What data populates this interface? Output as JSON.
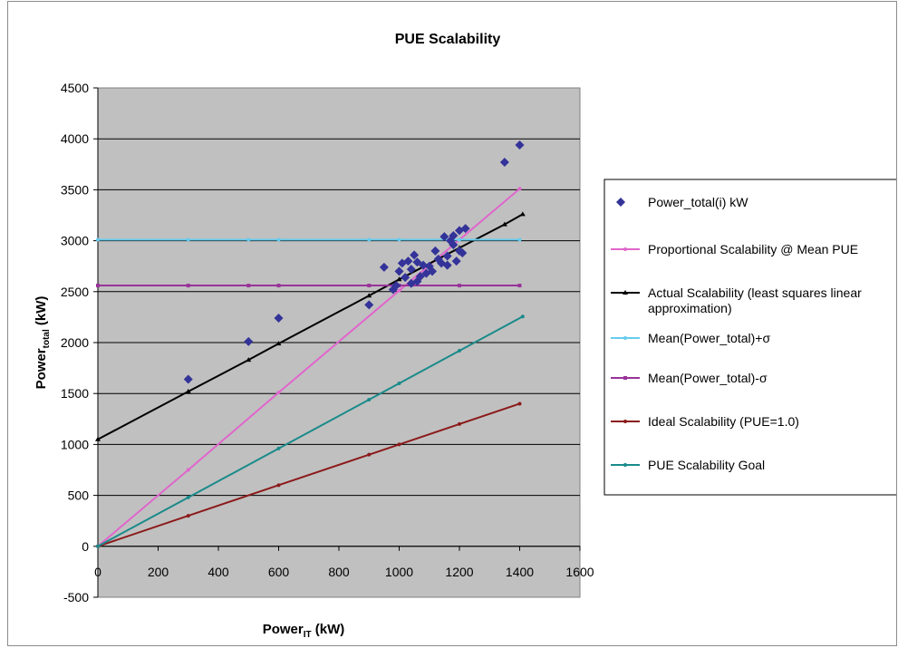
{
  "chart_data": {
    "type": "scatter",
    "title": "PUE Scalability",
    "xlabel": {
      "main": "Power",
      "sub": "IT",
      "unit": " (kW)"
    },
    "ylabel": {
      "main": "Power",
      "sub": "total",
      "unit": " (kW)"
    },
    "xlim": [
      0,
      1600
    ],
    "ylim": [
      -500,
      4500
    ],
    "x_ticks": [
      0,
      200,
      400,
      600,
      800,
      1000,
      1200,
      1400,
      1600
    ],
    "y_ticks": [
      -500,
      0,
      500,
      1000,
      1500,
      2000,
      2500,
      3000,
      3500,
      4000,
      4500
    ],
    "grid": "horizontal",
    "plot_background": "#c0c0c0",
    "legend_position": "right",
    "series": [
      {
        "name": "Power_total(i) kW",
        "kind": "markers",
        "marker": "diamond",
        "color": "#333399",
        "points": [
          [
            300,
            1640
          ],
          [
            500,
            2010
          ],
          [
            600,
            2240
          ],
          [
            900,
            2370
          ],
          [
            950,
            2740
          ],
          [
            980,
            2520
          ],
          [
            990,
            2560
          ],
          [
            1000,
            2700
          ],
          [
            1010,
            2780
          ],
          [
            1020,
            2640
          ],
          [
            1030,
            2800
          ],
          [
            1040,
            2720
          ],
          [
            1050,
            2860
          ],
          [
            1060,
            2600
          ],
          [
            1070,
            2650
          ],
          [
            1080,
            2760
          ],
          [
            1090,
            2680
          ],
          [
            1100,
            2750
          ],
          [
            1110,
            2700
          ],
          [
            1120,
            2900
          ],
          [
            1130,
            2820
          ],
          [
            1140,
            2780
          ],
          [
            1150,
            3040
          ],
          [
            1160,
            2850
          ],
          [
            1170,
            3000
          ],
          [
            1180,
            2960
          ],
          [
            1190,
            2800
          ],
          [
            1200,
            3100
          ],
          [
            1210,
            2880
          ],
          [
            1220,
            3120
          ],
          [
            1160,
            2760
          ],
          [
            1200,
            2900
          ],
          [
            1040,
            2580
          ],
          [
            1060,
            2790
          ],
          [
            1180,
            3050
          ],
          [
            1350,
            3770
          ],
          [
            1400,
            3940
          ]
        ]
      },
      {
        "name": "Proportional Scalability @ Mean PUE",
        "kind": "line",
        "marker": "dot",
        "color": "#e066cc",
        "points": [
          [
            0,
            0
          ],
          [
            300,
            750
          ],
          [
            600,
            1510
          ],
          [
            1000,
            2510
          ],
          [
            1200,
            3010
          ],
          [
            1400,
            3510
          ]
        ]
      },
      {
        "name": "Actual Scalability (least squares linear approximation)",
        "kind": "line",
        "marker": "triangle",
        "color": "#000000",
        "points": [
          [
            0,
            1050
          ],
          [
            300,
            1520
          ],
          [
            500,
            1830
          ],
          [
            600,
            1990
          ],
          [
            900,
            2460
          ],
          [
            1000,
            2620
          ],
          [
            1200,
            2930
          ],
          [
            1350,
            3160
          ],
          [
            1410,
            3260
          ]
        ]
      },
      {
        "name": "Mean(Power_total)+σ",
        "kind": "line",
        "marker": "dot",
        "color": "#66ccee",
        "points": [
          [
            0,
            3010
          ],
          [
            300,
            3010
          ],
          [
            500,
            3010
          ],
          [
            600,
            3010
          ],
          [
            900,
            3010
          ],
          [
            1000,
            3010
          ],
          [
            1200,
            3010
          ],
          [
            1400,
            3010
          ]
        ]
      },
      {
        "name": "Mean(Power_total)-σ",
        "kind": "line",
        "marker": "square",
        "color": "#993399",
        "points": [
          [
            0,
            2560
          ],
          [
            300,
            2560
          ],
          [
            500,
            2560
          ],
          [
            600,
            2560
          ],
          [
            900,
            2560
          ],
          [
            1000,
            2560
          ],
          [
            1200,
            2560
          ],
          [
            1400,
            2560
          ]
        ]
      },
      {
        "name": "Ideal Scalability (PUE=1.0)",
        "kind": "line",
        "marker": "dot",
        "color": "#8b1a1a",
        "points": [
          [
            0,
            0
          ],
          [
            300,
            300
          ],
          [
            600,
            600
          ],
          [
            900,
            900
          ],
          [
            1000,
            1000
          ],
          [
            1200,
            1200
          ],
          [
            1400,
            1400
          ]
        ]
      },
      {
        "name": "PUE Scalability Goal",
        "kind": "line",
        "marker": "dot",
        "color": "#1a8a8a",
        "points": [
          [
            0,
            0
          ],
          [
            300,
            480
          ],
          [
            600,
            960
          ],
          [
            900,
            1440
          ],
          [
            1000,
            1600
          ],
          [
            1200,
            1920
          ],
          [
            1410,
            2256
          ]
        ]
      }
    ],
    "legend": [
      {
        "lines": [
          "Power_total(i) kW"
        ],
        "color": "#333399",
        "symbol": "diamond"
      },
      {
        "lines": [
          "Proportional Scalability @ Mean PUE"
        ],
        "color": "#e066cc",
        "symbol": "line-dot"
      },
      {
        "lines": [
          "Actual Scalability (least squares linear",
          "approximation)"
        ],
        "color": "#000000",
        "symbol": "line-triangle"
      },
      {
        "lines": [
          "Mean(Power_total)+σ"
        ],
        "color": "#66ccee",
        "symbol": "line-dot"
      },
      {
        "lines": [
          "Mean(Power_total)-σ"
        ],
        "color": "#993399",
        "symbol": "line-square"
      },
      {
        "lines": [
          "Ideal Scalability (PUE=1.0)"
        ],
        "color": "#8b1a1a",
        "symbol": "line-dot"
      },
      {
        "lines": [
          "PUE Scalability Goal"
        ],
        "color": "#1a8a8a",
        "symbol": "line-dot"
      }
    ]
  }
}
